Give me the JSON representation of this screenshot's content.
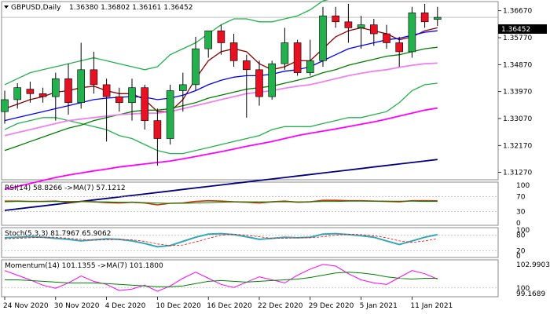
{
  "symbol_header": "GBPUSD,Daily",
  "ohlc_header": "1.36380 1.36802 1.36161 1.36452",
  "current_price_label": "1.36452",
  "colors": {
    "background": "#ffffff",
    "bull": "#22b14c",
    "bear": "#e81123",
    "candle_outline": "#000000",
    "bb": "#22b14c",
    "ma_fast": "#8b0000",
    "ma_blue": "#0000ff",
    "ma_green": "#008000",
    "ma_pink": "#ee82ee",
    "ma_magenta": "#ff00ff",
    "ma_navy": "#000080",
    "rsi_line": "#cc3300",
    "rsi_ma": "#008000",
    "stoch_main": "#31a8b8",
    "stoch_signal": "#ff0000",
    "momentum": "#ff00ff",
    "momentum_ma": "#008000"
  },
  "chart_data": [
    {
      "pane": "main",
      "type": "candlestick",
      "title": "GBPUSD,Daily",
      "y_ticks": [
        "1.36670",
        "1.35770",
        "1.34870",
        "1.33970",
        "1.33070",
        "1.32170",
        "1.31270"
      ],
      "ylim": [
        1.3105,
        1.3695
      ],
      "x_labels": [
        "24 Nov 2020",
        "30 Nov 2020",
        "4 Dec 2020",
        "10 Dec 2020",
        "16 Dec 2020",
        "22 Dec 2020",
        "29 Dec 2020",
        "5 Jan 2021",
        "11 Jan 2021"
      ],
      "x_label_index": [
        0,
        4,
        8,
        12,
        16,
        20,
        24,
        28,
        32
      ],
      "candles": [
        {
          "o": 1.333,
          "h": 1.34,
          "l": 1.329,
          "c": 1.337
        },
        {
          "o": 1.337,
          "h": 1.3425,
          "l": 1.334,
          "c": 1.341
        },
        {
          "o": 1.3405,
          "h": 1.343,
          "l": 1.336,
          "c": 1.339
        },
        {
          "o": 1.339,
          "h": 1.341,
          "l": 1.336,
          "c": 1.338
        },
        {
          "o": 1.338,
          "h": 1.346,
          "l": 1.33,
          "c": 1.344
        },
        {
          "o": 1.344,
          "h": 1.349,
          "l": 1.332,
          "c": 1.336
        },
        {
          "o": 1.336,
          "h": 1.356,
          "l": 1.334,
          "c": 1.347
        },
        {
          "o": 1.347,
          "h": 1.353,
          "l": 1.339,
          "c": 1.342
        },
        {
          "o": 1.342,
          "h": 1.344,
          "l": 1.323,
          "c": 1.338
        },
        {
          "o": 1.338,
          "h": 1.341,
          "l": 1.333,
          "c": 1.336
        },
        {
          "o": 1.336,
          "h": 1.344,
          "l": 1.33,
          "c": 1.341
        },
        {
          "o": 1.341,
          "h": 1.342,
          "l": 1.327,
          "c": 1.33
        },
        {
          "o": 1.33,
          "h": 1.334,
          "l": 1.315,
          "c": 1.324
        },
        {
          "o": 1.324,
          "h": 1.342,
          "l": 1.322,
          "c": 1.34
        },
        {
          "o": 1.34,
          "h": 1.346,
          "l": 1.333,
          "c": 1.342
        },
        {
          "o": 1.342,
          "h": 1.358,
          "l": 1.34,
          "c": 1.354
        },
        {
          "o": 1.354,
          "h": 1.36,
          "l": 1.351,
          "c": 1.36
        },
        {
          "o": 1.36,
          "h": 1.362,
          "l": 1.352,
          "c": 1.356
        },
        {
          "o": 1.356,
          "h": 1.359,
          "l": 1.348,
          "c": 1.35
        },
        {
          "o": 1.35,
          "h": 1.352,
          "l": 1.331,
          "c": 1.347
        },
        {
          "o": 1.347,
          "h": 1.35,
          "l": 1.335,
          "c": 1.338
        },
        {
          "o": 1.338,
          "h": 1.35,
          "l": 1.337,
          "c": 1.349
        },
        {
          "o": 1.349,
          "h": 1.361,
          "l": 1.347,
          "c": 1.356
        },
        {
          "o": 1.356,
          "h": 1.357,
          "l": 1.345,
          "c": 1.346
        },
        {
          "o": 1.346,
          "h": 1.357,
          "l": 1.345,
          "c": 1.35
        },
        {
          "o": 1.35,
          "h": 1.368,
          "l": 1.348,
          "c": 1.365
        },
        {
          "o": 1.365,
          "h": 1.368,
          "l": 1.361,
          "c": 1.363
        },
        {
          "o": 1.363,
          "h": 1.369,
          "l": 1.356,
          "c": 1.361
        },
        {
          "o": 1.361,
          "h": 1.365,
          "l": 1.354,
          "c": 1.362
        },
        {
          "o": 1.362,
          "h": 1.364,
          "l": 1.355,
          "c": 1.359
        },
        {
          "o": 1.359,
          "h": 1.362,
          "l": 1.354,
          "c": 1.356
        },
        {
          "o": 1.356,
          "h": 1.358,
          "l": 1.348,
          "c": 1.353
        },
        {
          "o": 1.353,
          "h": 1.368,
          "l": 1.351,
          "c": 1.366
        },
        {
          "o": 1.366,
          "h": 1.369,
          "l": 1.361,
          "c": 1.363
        },
        {
          "o": 1.3638,
          "h": 1.368,
          "l": 1.3616,
          "c": 1.3645
        }
      ],
      "overlays": [
        {
          "name": "bb_upper",
          "color_key": "bb",
          "values": [
            1.342,
            1.344,
            1.346,
            1.347,
            1.348,
            1.349,
            1.35,
            1.351,
            1.35,
            1.349,
            1.348,
            1.347,
            1.348,
            1.352,
            1.354,
            1.356,
            1.359,
            1.362,
            1.364,
            1.364,
            1.363,
            1.363,
            1.364,
            1.365,
            1.367,
            1.37,
            1.371,
            1.372,
            1.372,
            1.372,
            1.372,
            1.371,
            1.371,
            1.3715,
            1.3715
          ]
        },
        {
          "name": "bb_lower",
          "color_key": "bb",
          "values": [
            1.327,
            1.329,
            1.33,
            1.331,
            1.331,
            1.33,
            1.329,
            1.328,
            1.327,
            1.325,
            1.324,
            1.322,
            1.32,
            1.319,
            1.319,
            1.32,
            1.321,
            1.322,
            1.323,
            1.324,
            1.325,
            1.327,
            1.328,
            1.328,
            1.328,
            1.329,
            1.33,
            1.331,
            1.331,
            1.332,
            1.333,
            1.336,
            1.34,
            1.342,
            1.3425
          ]
        },
        {
          "name": "ma_fast",
          "color_key": "ma_fast",
          "values": [
            1.334,
            1.3355,
            1.337,
            1.338,
            1.3395,
            1.34,
            1.341,
            1.3415,
            1.34,
            1.339,
            1.339,
            1.337,
            1.333,
            1.333,
            1.337,
            1.344,
            1.35,
            1.353,
            1.354,
            1.353,
            1.349,
            1.347,
            1.348,
            1.35,
            1.35,
            1.354,
            1.358,
            1.36,
            1.361,
            1.36,
            1.359,
            1.357,
            1.358,
            1.36,
            1.361
          ]
        },
        {
          "name": "ma_blue",
          "color_key": "ma_blue",
          "values": [
            1.33,
            1.331,
            1.332,
            1.333,
            1.334,
            1.335,
            1.336,
            1.337,
            1.3375,
            1.3378,
            1.338,
            1.3378,
            1.337,
            1.3375,
            1.3385,
            1.34,
            1.342,
            1.3435,
            1.3445,
            1.345,
            1.345,
            1.3455,
            1.3465,
            1.347,
            1.348,
            1.35,
            1.352,
            1.354,
            1.355,
            1.356,
            1.357,
            1.3575,
            1.3585,
            1.3595,
            1.36
          ]
        },
        {
          "name": "ma_green",
          "color_key": "ma_green",
          "values": [
            1.32,
            1.3215,
            1.323,
            1.3245,
            1.326,
            1.3275,
            1.3285,
            1.33,
            1.331,
            1.332,
            1.333,
            1.3335,
            1.3335,
            1.334,
            1.335,
            1.336,
            1.3375,
            1.3385,
            1.3395,
            1.3405,
            1.341,
            1.3415,
            1.3425,
            1.3435,
            1.3445,
            1.346,
            1.347,
            1.3485,
            1.3495,
            1.3505,
            1.3515,
            1.352,
            1.353,
            1.354,
            1.3545
          ]
        },
        {
          "name": "ma_pink",
          "color_key": "ma_pink",
          "values": [
            1.325,
            1.326,
            1.327,
            1.328,
            1.329,
            1.33,
            1.3305,
            1.331,
            1.3315,
            1.332,
            1.3322,
            1.3325,
            1.3325,
            1.333,
            1.334,
            1.335,
            1.336,
            1.337,
            1.338,
            1.339,
            1.3395,
            1.34,
            1.3408,
            1.3415,
            1.342,
            1.343,
            1.344,
            1.345,
            1.3458,
            1.3465,
            1.347,
            1.3478,
            1.3485,
            1.349,
            1.3492
          ]
        },
        {
          "name": "ma_magenta",
          "color_key": "ma_magenta",
          "values": [
            1.307,
            1.308,
            1.309,
            1.31,
            1.311,
            1.3118,
            1.3125,
            1.3132,
            1.3138,
            1.3145,
            1.315,
            1.3155,
            1.316,
            1.3165,
            1.3172,
            1.318,
            1.3188,
            1.3196,
            1.3205,
            1.3214,
            1.3222,
            1.323,
            1.324,
            1.325,
            1.3258,
            1.3265,
            1.3272,
            1.328,
            1.3288,
            1.3296,
            1.3305,
            1.3315,
            1.3325,
            1.3335,
            1.3342
          ]
        },
        {
          "name": "ma_navy",
          "color_key": "ma_navy",
          "values": [
            1.3,
            1.3005,
            1.301,
            1.3015,
            1.302,
            1.3025,
            1.303,
            1.3035,
            1.304,
            1.3045,
            1.305,
            1.3055,
            1.306,
            1.3065,
            1.307,
            1.3075,
            1.308,
            1.3085,
            1.309,
            1.3095,
            1.31,
            1.3105,
            1.311,
            1.3115,
            1.312,
            1.3125,
            1.313,
            1.3135,
            1.314,
            1.3145,
            1.315,
            1.3155,
            1.316,
            1.3165,
            1.317
          ]
        }
      ]
    },
    {
      "pane": "rsi",
      "type": "line",
      "title": "RSI(14) 58.8266  ->MA(7) 57.1212",
      "ylim": [
        0,
        100
      ],
      "y_ticks": [
        100,
        70,
        30,
        0
      ],
      "series": [
        {
          "name": "RSI(14)",
          "color_key": "rsi_line",
          "values": [
            58,
            58,
            57,
            57,
            58,
            55,
            57,
            56,
            54,
            53,
            55,
            53,
            48,
            52,
            53,
            57,
            59,
            58,
            56,
            55,
            53,
            56,
            58,
            55,
            56,
            60,
            60,
            59,
            59,
            58,
            57,
            56,
            59,
            59,
            58.8
          ]
        },
        {
          "name": "MA(7)",
          "color_key": "rsi_ma",
          "values": [
            56,
            57,
            57,
            57,
            57,
            57,
            57,
            56,
            56,
            55,
            55,
            54,
            53,
            52,
            52,
            53,
            54,
            55,
            56,
            56,
            56,
            56,
            56,
            56,
            56,
            57,
            57,
            58,
            58,
            58,
            58,
            58,
            58,
            57,
            57.1
          ]
        }
      ]
    },
    {
      "pane": "stoch",
      "type": "line",
      "title": "Stoch(5,3,3) 81.7967 65.9062",
      "ylim": [
        0,
        100
      ],
      "y_ticks": [
        100,
        80,
        20,
        0
      ],
      "series": [
        {
          "name": "main",
          "color_key": "stoch_main",
          "values": [
            70,
            72,
            74,
            72,
            68,
            64,
            58,
            62,
            66,
            64,
            58,
            48,
            35,
            40,
            56,
            72,
            84,
            86,
            82,
            74,
            64,
            68,
            72,
            70,
            72,
            84,
            86,
            82,
            78,
            72,
            58,
            44,
            58,
            72,
            82
          ]
        },
        {
          "name": "signal",
          "color_key": "stoch_signal",
          "values": [
            66,
            68,
            70,
            72,
            72,
            68,
            64,
            61,
            62,
            64,
            62,
            56,
            46,
            40,
            42,
            54,
            68,
            80,
            84,
            80,
            74,
            68,
            68,
            70,
            70,
            74,
            80,
            84,
            82,
            78,
            70,
            58,
            52,
            58,
            66
          ]
        }
      ]
    },
    {
      "pane": "momentum",
      "type": "line",
      "title": "Momentum(14) 101.1355  ->MA(7) 101.1800",
      "ylim": [
        99.0,
        103.3
      ],
      "y_ticks": [
        "102.9903",
        "100",
        "99.1689"
      ],
      "series": [
        {
          "name": "Momentum(14)",
          "color_key": "momentum",
          "values": [
            102.2,
            101.6,
            101.0,
            100.3,
            99.9,
            100.6,
            101.5,
            100.8,
            100.4,
            99.6,
            99.8,
            100.3,
            99.5,
            100.2,
            101.2,
            102.0,
            101.2,
            100.4,
            100.0,
            100.7,
            101.4,
            101.0,
            100.6,
            101.6,
            102.4,
            103.0,
            102.8,
            101.8,
            101.0,
            100.6,
            100.4,
            101.3,
            102.2,
            101.8,
            101.1
          ]
        },
        {
          "name": "MA(7)",
          "color_key": "momentum_ma",
          "values": [
            101.0,
            101.0,
            100.9,
            100.8,
            100.7,
            100.6,
            100.6,
            100.6,
            100.5,
            100.4,
            100.3,
            100.2,
            100.1,
            100.1,
            100.2,
            100.5,
            100.8,
            100.9,
            100.8,
            100.7,
            100.8,
            100.9,
            101.0,
            101.1,
            101.3,
            101.6,
            101.9,
            102.0,
            101.9,
            101.7,
            101.4,
            101.2,
            101.1,
            101.2,
            101.2
          ]
        }
      ]
    }
  ]
}
